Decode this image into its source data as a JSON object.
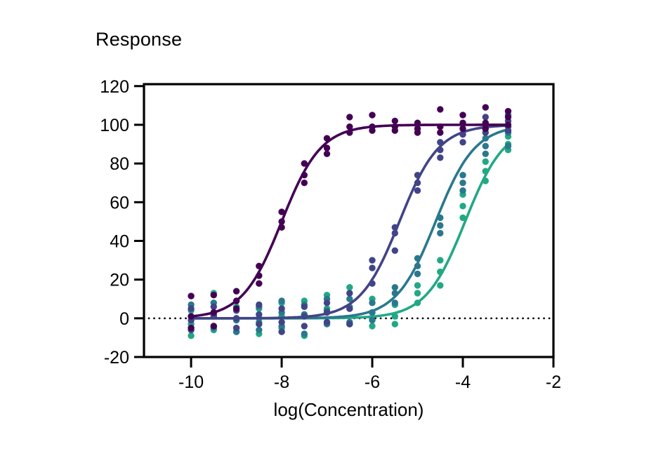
{
  "chart_data": {
    "type": "scatter",
    "subtype": "dose-response-4PL-fit",
    "title": "Response",
    "xlabel": "log(Concentration)",
    "ylabel": "",
    "xlim": [
      -11.04,
      -2
    ],
    "ylim": [
      -20,
      121
    ],
    "xticks": [
      -10,
      -8,
      -6,
      -4,
      -2
    ],
    "xtick_labels": [
      "-10",
      "-8",
      "-6",
      "-4",
      "-2"
    ],
    "yticks": [
      120,
      100,
      80,
      60,
      40,
      20,
      0,
      -20
    ],
    "ytick_labels": [
      "120",
      "100",
      "80",
      "60",
      "40",
      "20",
      "0",
      "-20"
    ],
    "grid": false,
    "legend": false,
    "frame": "box",
    "axis_color": "#000000",
    "baseline": {
      "y": 0,
      "style": "dotted",
      "color": "#000000"
    },
    "curve_range": [
      -10,
      -3
    ],
    "x": [
      -10,
      -9.5,
      -9,
      -8.5,
      -8,
      -7.5,
      -7,
      -6.5,
      -6,
      -5.5,
      -5,
      -4.5,
      -4,
      -3.5,
      -3
    ],
    "series": [
      {
        "name": "curve-1-dark-purple",
        "color": "#440154",
        "fit": {
          "model": "4PL",
          "bottom": 0,
          "top": 100,
          "hill": 1.0,
          "logEC50": -8.0
        },
        "replicates": [
          [
            11.5,
            1,
            -5
          ],
          [
            12,
            3,
            -4
          ],
          [
            14,
            9,
            5
          ],
          [
            27,
            22,
            18
          ],
          [
            55,
            50,
            47
          ],
          [
            80,
            74,
            70
          ],
          [
            93,
            88,
            85
          ],
          [
            104,
            99,
            96
          ],
          [
            105,
            99,
            97
          ],
          [
            102,
            99,
            97
          ],
          [
            101,
            98,
            96
          ],
          [
            108,
            99,
            96
          ],
          [
            105,
            101,
            98
          ],
          [
            109,
            101,
            98
          ],
          [
            107,
            104,
            100
          ]
        ]
      },
      {
        "name": "curve-2-indigo",
        "color": "#414487",
        "fit": {
          "model": "4PL",
          "bottom": 0,
          "top": 100,
          "hill": 1.0,
          "logEC50": -5.4
        },
        "replicates": [
          [
            5,
            -1,
            -6
          ],
          [
            6,
            1,
            -4
          ],
          [
            4,
            0,
            -5
          ],
          [
            7,
            2,
            -3
          ],
          [
            5,
            -2,
            -7
          ],
          [
            6,
            1,
            -4
          ],
          [
            8,
            3,
            -2
          ],
          [
            13,
            5,
            -3
          ],
          [
            30,
            26,
            18
          ],
          [
            47,
            44,
            35
          ],
          [
            74,
            70,
            66
          ],
          [
            91,
            87,
            83
          ],
          [
            98,
            95,
            91
          ],
          [
            104,
            100,
            96
          ],
          [
            102,
            99,
            97
          ]
        ]
      },
      {
        "name": "curve-3-teal",
        "color": "#2a788e",
        "fit": {
          "model": "4PL",
          "bottom": 0,
          "top": 100,
          "hill": 1.0,
          "logEC50": -4.6
        },
        "replicates": [
          [
            7,
            1,
            -6
          ],
          [
            8,
            2,
            -5
          ],
          [
            5,
            -1,
            -7
          ],
          [
            6,
            0,
            -6
          ],
          [
            9,
            3,
            -4
          ],
          [
            7,
            2,
            -8
          ],
          [
            10,
            4,
            -3
          ],
          [
            10,
            5,
            -2
          ],
          [
            8,
            3,
            -1
          ],
          [
            16,
            13,
            8
          ],
          [
            31,
            27,
            23
          ],
          [
            52,
            48,
            44
          ],
          [
            74,
            70,
            66
          ],
          [
            93,
            89,
            85
          ],
          [
            105,
            96,
            89
          ]
        ]
      },
      {
        "name": "curve-4-green",
        "color": "#22a884",
        "fit": {
          "model": "4PL",
          "bottom": 0,
          "top": 100,
          "hill": 1.0,
          "logEC50": -3.95
        },
        "replicates": [
          [
            4,
            -3,
            -9
          ],
          [
            13,
            2,
            -6
          ],
          [
            6,
            0,
            -7
          ],
          [
            5,
            -2,
            -8
          ],
          [
            8,
            1,
            -5
          ],
          [
            9,
            2,
            -9
          ],
          [
            12,
            5,
            -2
          ],
          [
            16,
            6,
            -3
          ],
          [
            10,
            3,
            -4
          ],
          [
            7,
            1,
            -3
          ],
          [
            17,
            13,
            8
          ],
          [
            30,
            24,
            17
          ],
          [
            64,
            58,
            52
          ],
          [
            81,
            76,
            71
          ],
          [
            94,
            90,
            87
          ]
        ]
      }
    ]
  }
}
